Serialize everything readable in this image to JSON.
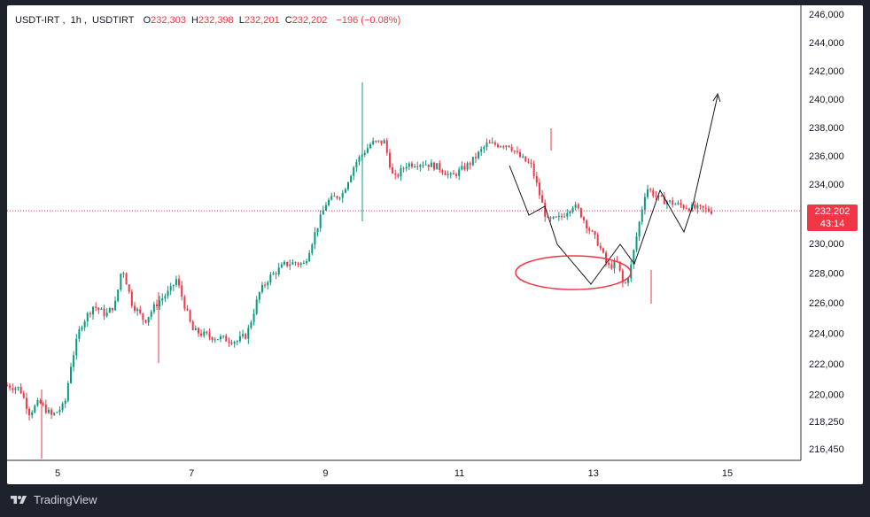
{
  "header": {
    "symbol": "USDT-IRT",
    "interval": "1h",
    "exchange": "USDTIRT",
    "open_label": "O",
    "open": "232,303",
    "high_label": "H",
    "high": "232,398",
    "low_label": "L",
    "low": "232,201",
    "close_label": "C",
    "close": "232,202",
    "change": "−196 (−0.08%)"
  },
  "price_tag": {
    "price": "232,202",
    "countdown": "43:14"
  },
  "footer": {
    "brand": "TradingView"
  },
  "colors": {
    "up": "#089981",
    "down": "#f23645",
    "axis_text": "#131722",
    "annotation": "#f23645"
  },
  "chart_data": {
    "type": "candlestick",
    "x_ticks": [
      "5",
      "7",
      "9",
      "11",
      "13",
      "15"
    ],
    "y_ticks": [
      "246,000",
      "244,000",
      "242,000",
      "240,000",
      "238,000",
      "236,000",
      "234,000",
      "232,000",
      "230,000",
      "228,000",
      "226,000",
      "224,000",
      "222,000",
      "220,000",
      "218,250",
      "216,450"
    ],
    "last_price": 232202,
    "path_points": [
      [
        11.8,
        235300
      ],
      [
        12.15,
        232000
      ],
      [
        12.6,
        233000
      ],
      [
        12.75,
        229600
      ],
      [
        13.05,
        233000
      ],
      [
        13.35,
        226200
      ],
      [
        13.75,
        234500
      ]
    ],
    "sketch_points": [
      [
        11.7,
        235200
      ],
      [
        12.1,
        231900
      ],
      [
        12.5,
        232600
      ],
      [
        12.7,
        229900
      ],
      [
        13.0,
        232300
      ],
      [
        13.3,
        227400
      ],
      [
        13.65,
        231300
      ],
      [
        14.0,
        233800
      ],
      [
        14.35,
        230900
      ],
      [
        14.6,
        234200
      ],
      [
        14.85,
        240300
      ]
    ]
  }
}
